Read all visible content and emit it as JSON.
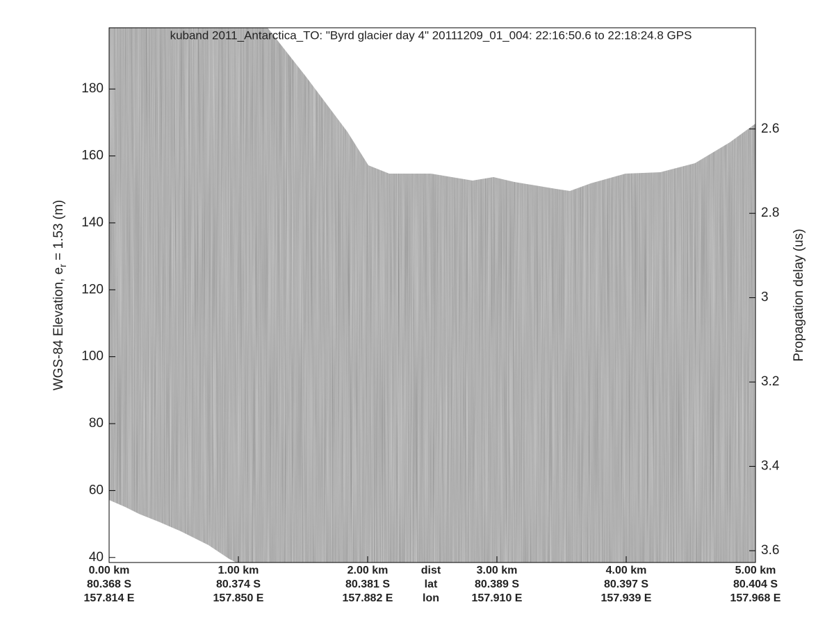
{
  "chart_data": {
    "type": "radargram",
    "title": "kuband 2011_Antarctica_TO: \"Byrd glacier day 4\"  20111209_01_004: 22:16:50.6 to 22:18:24.8 GPS",
    "ylabel": {
      "text": "WGS-84 Elevation, e",
      "sub": "r",
      "rest": " = 1.53 (m)"
    },
    "y2label": "Propagation delay (us)",
    "xlim": [
      0,
      5
    ],
    "xticks": [
      {
        "value": 0,
        "label": "0.00 km"
      },
      {
        "value": 1,
        "label": "1.00 km"
      },
      {
        "value": 2,
        "label": "2.00 km"
      },
      {
        "value": 3,
        "label": "3.00 km"
      },
      {
        "value": 4,
        "label": "4.00 km"
      },
      {
        "value": 5,
        "label": "5.00 km"
      }
    ],
    "lat": [
      "80.368 S",
      "80.374 S",
      "80.381 S",
      "80.389 S",
      "80.397 S",
      "80.404 S"
    ],
    "lon": [
      "157.814 E",
      "157.850 E",
      "157.882 E",
      "157.910 E",
      "157.939 E",
      "157.968 E"
    ],
    "row_names": [
      "dist",
      "lat",
      "lon"
    ],
    "ylim": [
      38.5,
      198.3
    ],
    "yticks": [
      40,
      60,
      80,
      100,
      120,
      140,
      160,
      180
    ],
    "y2lim": [
      3.628,
      2.36
    ],
    "y2ticks": [
      2.6,
      2.8,
      3,
      3.2,
      3.4,
      3.6
    ]
  }
}
